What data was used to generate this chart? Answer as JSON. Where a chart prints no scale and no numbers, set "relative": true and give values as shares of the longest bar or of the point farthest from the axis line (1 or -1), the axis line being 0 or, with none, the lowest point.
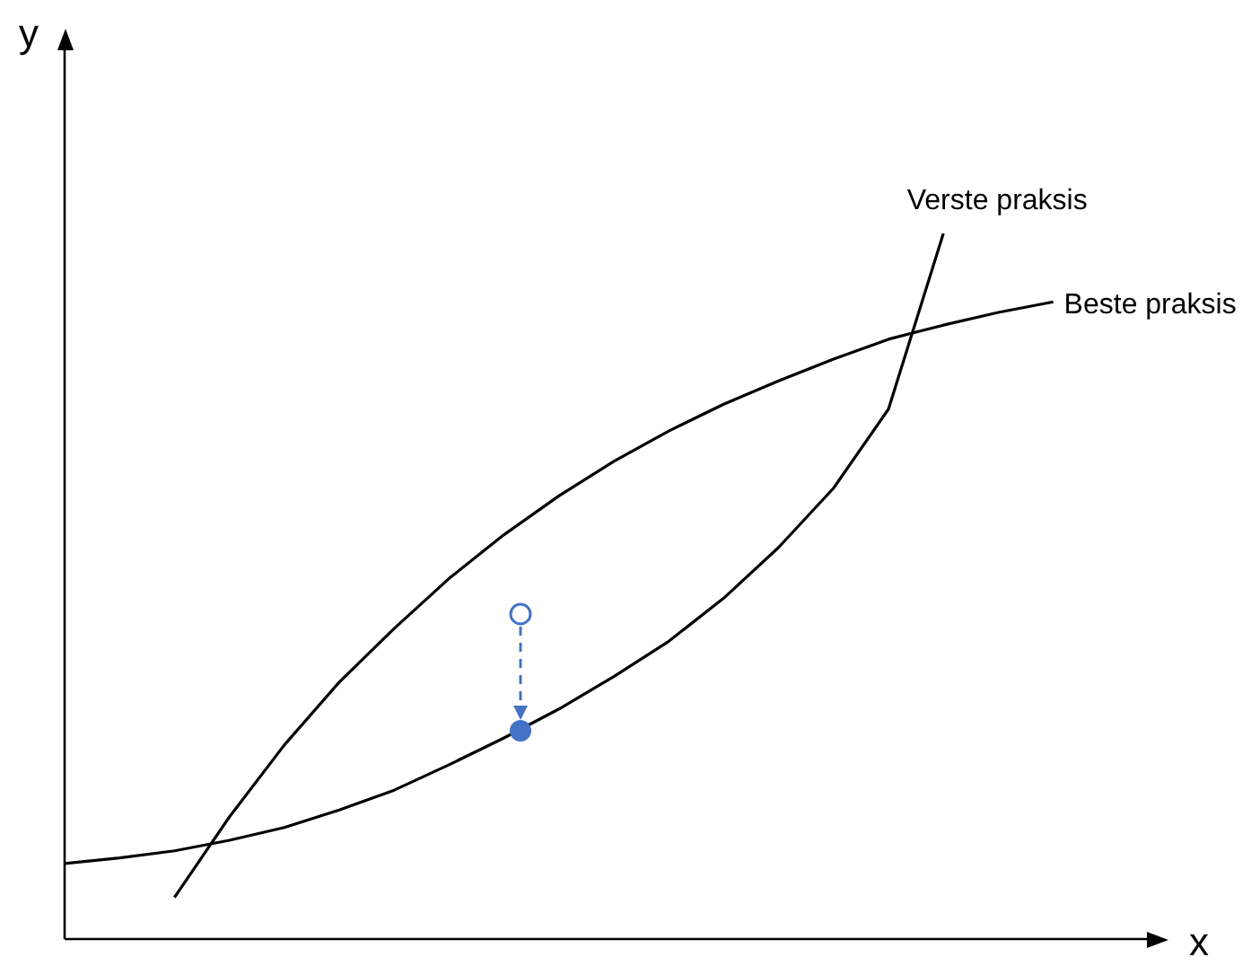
{
  "chart_data": {
    "type": "line",
    "relative": true,
    "xlabel": "x",
    "ylabel": "y",
    "legend": false,
    "categories": [
      null,
      null,
      null,
      null,
      null,
      null,
      null,
      null,
      null,
      null,
      null,
      null,
      null,
      null,
      null,
      null,
      null,
      null,
      null,
      null,
      null
    ],
    "series": [
      {
        "name": "Verste praksis",
        "color": "#000000",
        "marker": "none",
        "values": [
          0.107,
          0.115,
          0.125,
          0.14,
          0.158,
          0.183,
          0.211,
          0.247,
          0.285,
          0.326,
          0.372,
          0.422,
          0.483,
          0.555,
          0.639,
          0.751,
          1,
          null,
          null,
          null,
          null
        ]
      },
      {
        "name": "Beste praksis",
        "color": "#000000",
        "marker": "none",
        "values": [
          null,
          null,
          0.059,
          0.173,
          0.275,
          0.364,
          0.44,
          0.511,
          0.573,
          0.628,
          0.677,
          0.72,
          0.758,
          0.791,
          0.822,
          0.85,
          0.87,
          0.888,
          0.903,
          null,
          null
        ]
      }
    ]
  }
}
